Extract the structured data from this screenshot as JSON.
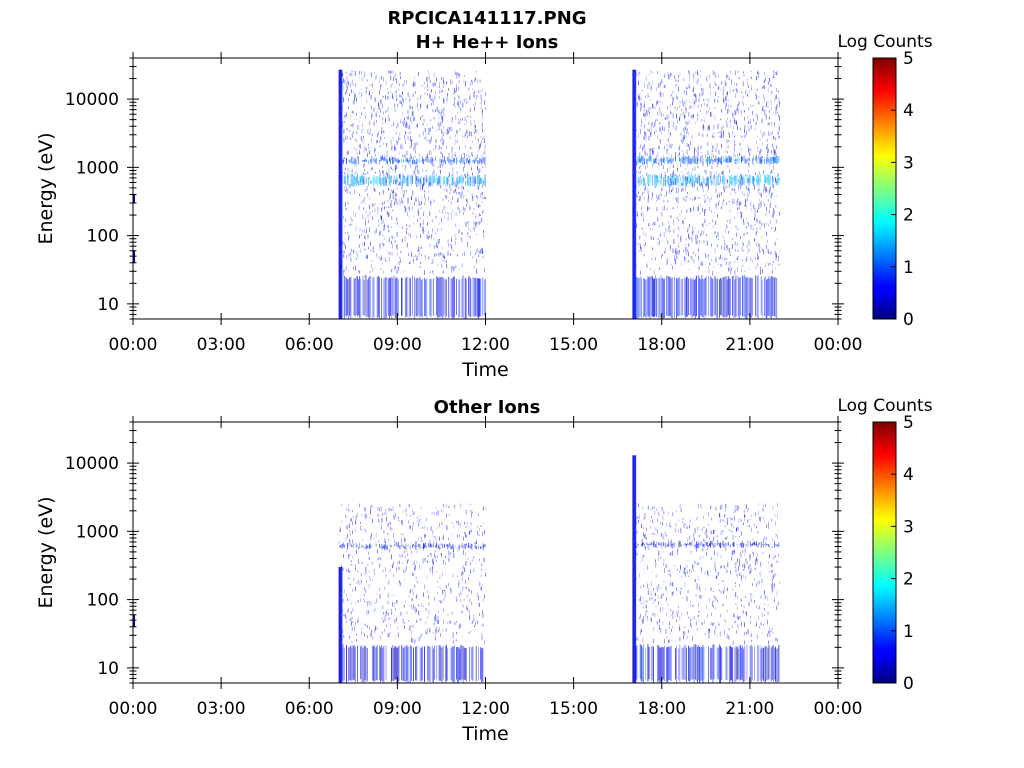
{
  "figure": {
    "title_line1": "RPCICA141117.PNG",
    "title_line2": "H+ He++ Ions"
  },
  "chart_data": [
    {
      "type": "heatmap",
      "title": "H+ He++ Ions",
      "xlabel": "Time",
      "ylabel": "Energy (eV)",
      "x_tick_labels": [
        "00:00",
        "03:00",
        "06:00",
        "09:00",
        "12:00",
        "15:00",
        "18:00",
        "21:00",
        "00:00"
      ],
      "x_range_hours": [
        0,
        24
      ],
      "y_scale": "log",
      "y_tick_values": [
        10,
        100,
        1000,
        10000
      ],
      "y_tick_labels": [
        "10",
        "100",
        "1000",
        "10000"
      ],
      "y_range": [
        6,
        40000
      ],
      "colorbar": {
        "label": "Log Counts",
        "range": [
          0,
          5
        ],
        "tick_labels": [
          "0",
          "1",
          "2",
          "3",
          "4",
          "5"
        ],
        "colormap": "jet"
      },
      "blocks": [
        {
          "start": "07:00",
          "end": "12:00",
          "onset_spike": {
            "time": "07:00",
            "energy_range": [
              6,
              27000
            ],
            "log_counts": 0.3
          },
          "bands": [
            {
              "energy_range": [
                520,
                800
              ],
              "log_counts": 1.4
            },
            {
              "energy_range": [
                1100,
                1450
              ],
              "log_counts": 1.0
            },
            {
              "energy_range": [
                6,
                26
              ],
              "log_counts": 0.6
            }
          ],
          "sparse_energy_range": [
            30,
            27000
          ]
        },
        {
          "start": "17:00",
          "end": "22:00",
          "onset_spike": {
            "time": "17:00",
            "energy_range": [
              6,
              27000
            ],
            "log_counts": 0.3
          },
          "bands": [
            {
              "energy_range": [
                520,
                800
              ],
              "log_counts": 1.4
            },
            {
              "energy_range": [
                1100,
                1500
              ],
              "log_counts": 1.1
            },
            {
              "energy_range": [
                6,
                26
              ],
              "log_counts": 0.6
            }
          ],
          "sparse_energy_range": [
            30,
            27000
          ]
        }
      ],
      "isolated_points": [
        {
          "time": "00:00",
          "energy_range": [
            40,
            60
          ],
          "log_counts": 0.3
        },
        {
          "time": "00:00",
          "energy_range": [
            300,
            400
          ],
          "log_counts": 0.3
        }
      ]
    },
    {
      "type": "heatmap",
      "title": "Other Ions",
      "xlabel": "Time",
      "ylabel": "Energy (eV)",
      "x_tick_labels": [
        "00:00",
        "03:00",
        "06:00",
        "09:00",
        "12:00",
        "15:00",
        "18:00",
        "21:00",
        "00:00"
      ],
      "x_range_hours": [
        0,
        24
      ],
      "y_scale": "log",
      "y_tick_values": [
        10,
        100,
        1000,
        10000
      ],
      "y_tick_labels": [
        "10",
        "100",
        "1000",
        "10000"
      ],
      "y_range": [
        6,
        40000
      ],
      "colorbar": {
        "label": "Log Counts",
        "range": [
          0,
          5
        ],
        "tick_labels": [
          "0",
          "1",
          "2",
          "3",
          "4",
          "5"
        ],
        "colormap": "jet"
      },
      "blocks": [
        {
          "start": "07:00",
          "end": "12:00",
          "onset_spike": {
            "time": "07:00",
            "energy_range": [
              6,
              300
            ],
            "log_counts": 0.3
          },
          "bands": [
            {
              "energy_range": [
                540,
                680
              ],
              "log_counts": 0.6
            },
            {
              "energy_range": [
                6,
                22
              ],
              "log_counts": 0.5
            }
          ],
          "sparse_energy_range": [
            25,
            2600
          ]
        },
        {
          "start": "17:00",
          "end": "22:00",
          "onset_spike": {
            "time": "17:00",
            "energy_range": [
              6,
              13000
            ],
            "log_counts": 0.2
          },
          "bands": [
            {
              "energy_range": [
                560,
                720
              ],
              "log_counts": 0.6
            },
            {
              "energy_range": [
                6,
                22
              ],
              "log_counts": 0.6
            }
          ],
          "sparse_energy_range": [
            25,
            2600
          ]
        }
      ],
      "isolated_points": [
        {
          "time": "00:00",
          "energy_range": [
            40,
            60
          ],
          "log_counts": 0.3
        }
      ]
    }
  ]
}
